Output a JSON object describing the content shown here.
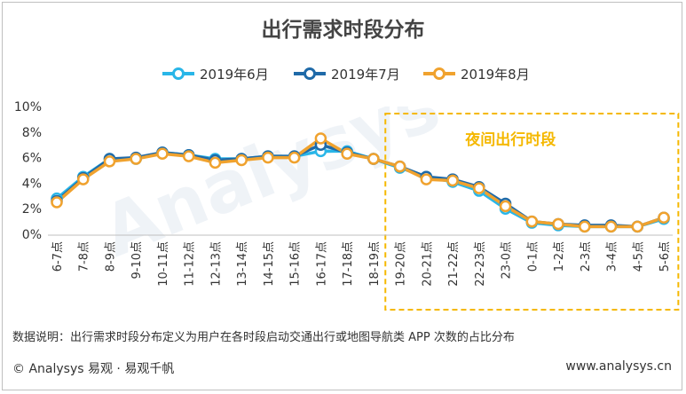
{
  "chart_data": {
    "type": "line",
    "title": "出行需求时段分布",
    "categories": [
      "6-7点",
      "7-8点",
      "8-9点",
      "9-10点",
      "10-11点",
      "11-12点",
      "12-13点",
      "13-14点",
      "14-15点",
      "15-16点",
      "16-17点",
      "17-18点",
      "18-19点",
      "19-20点",
      "20-21点",
      "21-22点",
      "22-23点",
      "23-0点",
      "0-1点",
      "1-2点",
      "2-3点",
      "3-4点",
      "4-5点",
      "5-6点"
    ],
    "series": [
      {
        "name": "2019年6月",
        "color": "#29b6e8",
        "values": [
          2.8,
          4.5,
          5.9,
          5.9,
          6.4,
          6.2,
          5.9,
          5.9,
          6.1,
          6.1,
          6.5,
          6.5,
          5.9,
          5.2,
          4.5,
          4.1,
          3.4,
          2.0,
          0.9,
          0.7,
          0.6,
          0.6,
          0.6,
          1.2
        ]
      },
      {
        "name": "2019年7月",
        "color": "#1f6aa8",
        "values": [
          2.6,
          4.4,
          5.9,
          6.0,
          6.4,
          6.2,
          5.8,
          5.9,
          6.1,
          6.1,
          7.0,
          6.4,
          5.9,
          5.3,
          4.5,
          4.3,
          3.7,
          2.4,
          1.0,
          0.8,
          0.7,
          0.7,
          0.6,
          1.3
        ]
      },
      {
        "name": "2019年8月",
        "color": "#f0a22e",
        "values": [
          2.5,
          4.3,
          5.7,
          5.9,
          6.3,
          6.1,
          5.6,
          5.8,
          6.0,
          6.0,
          7.5,
          6.3,
          5.9,
          5.3,
          4.3,
          4.2,
          3.6,
          2.2,
          1.0,
          0.8,
          0.6,
          0.6,
          0.6,
          1.3
        ]
      }
    ],
    "yticks": [
      "0%",
      "2%",
      "4%",
      "6%",
      "8%",
      "10%"
    ],
    "ylim": [
      0,
      10
    ],
    "grid": false,
    "legend_position": "top",
    "annotation": {
      "label": "夜间出行时段",
      "from": "19-20点",
      "to": "5-6点",
      "color": "#f5b800"
    }
  },
  "note": "数据说明：出行需求时段分布定义为用户在各时段启动交通出行或地图导航类 APP 次数的占比分布",
  "footer": {
    "left": "© Analysys 易观 · 易观千帆",
    "right": "www.analysys.cn"
  }
}
